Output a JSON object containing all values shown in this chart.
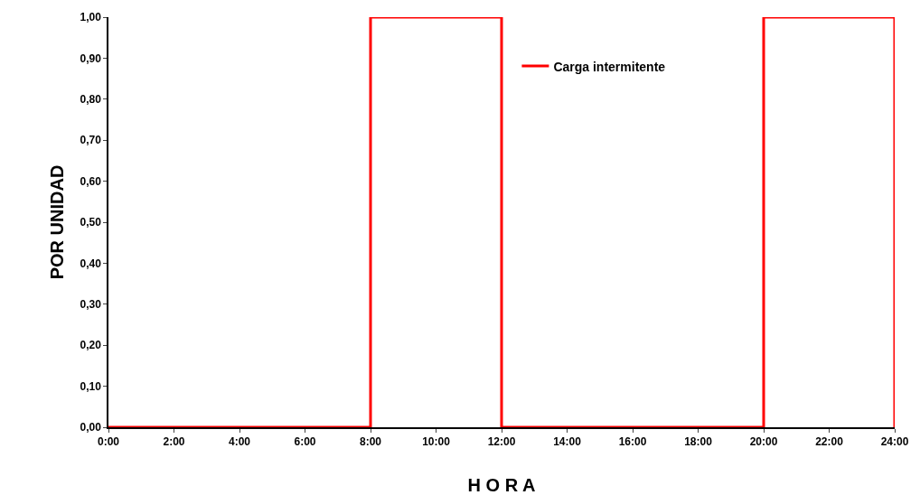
{
  "chart_data": {
    "type": "line",
    "xlabel": "H O R A",
    "ylabel": "POR UNIDAD",
    "x": [
      0,
      8,
      8,
      12,
      12,
      20,
      20,
      24,
      24
    ],
    "series": [
      {
        "name": "Carga intermitente",
        "color": "#ff0000",
        "values": [
          0,
          0,
          1,
          1,
          0,
          0,
          1,
          1,
          0
        ]
      }
    ],
    "xlim": [
      0,
      24
    ],
    "xticks": [
      {
        "value": 0,
        "label": "0:00"
      },
      {
        "value": 2,
        "label": "2:00"
      },
      {
        "value": 4,
        "label": "4:00"
      },
      {
        "value": 6,
        "label": "6:00"
      },
      {
        "value": 8,
        "label": "8:00"
      },
      {
        "value": 10,
        "label": "10:00"
      },
      {
        "value": 12,
        "label": "12:00"
      },
      {
        "value": 14,
        "label": "14:00"
      },
      {
        "value": 16,
        "label": "16:00"
      },
      {
        "value": 18,
        "label": "18:00"
      },
      {
        "value": 20,
        "label": "20:00"
      },
      {
        "value": 22,
        "label": "22:00"
      },
      {
        "value": 24,
        "label": "24:00"
      }
    ],
    "ylim": [
      0,
      1
    ],
    "yticks": [
      {
        "value": 0,
        "label": "0,00"
      },
      {
        "value": 0.1,
        "label": "0,10"
      },
      {
        "value": 0.2,
        "label": "0,20"
      },
      {
        "value": 0.3,
        "label": "0,30"
      },
      {
        "value": 0.4,
        "label": "0,40"
      },
      {
        "value": 0.5,
        "label": "0,50"
      },
      {
        "value": 0.6,
        "label": "0,60"
      },
      {
        "value": 0.7,
        "label": "0,70"
      },
      {
        "value": 0.8,
        "label": "0,80"
      },
      {
        "value": 0.9,
        "label": "0,90"
      },
      {
        "value": 1,
        "label": "1,00"
      }
    ],
    "grid": false,
    "legend": "top right",
    "marker": "none",
    "line_style": "solid"
  }
}
